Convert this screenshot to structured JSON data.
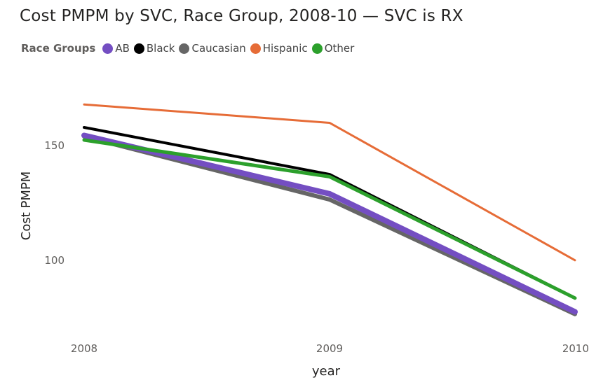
{
  "chart_data": {
    "type": "line",
    "title": "Cost PMPM by SVC, Race Group, 2008-10 — SVC is RX",
    "xlabel": "year",
    "ylabel": "Cost PMPM",
    "legend_title": "Race Groups",
    "legend_position": "top-left",
    "grid": false,
    "x": [
      "2008",
      "2009",
      "2010"
    ],
    "y_ticks": [
      "150",
      "100"
    ],
    "ylim": [
      70,
      180
    ],
    "series": [
      {
        "name": "Caucasian",
        "color": "#666666",
        "values": [
          154,
          126.5,
          76.5
        ]
      },
      {
        "name": "AB",
        "color": "#744EC2",
        "values": [
          154.5,
          129,
          77.5
        ]
      },
      {
        "name": "Black",
        "color": "#000000",
        "values": [
          158,
          137.5,
          83.5
        ]
      },
      {
        "name": "Other",
        "color": "#2CA02C",
        "values": [
          152.5,
          136.5,
          83.5
        ]
      },
      {
        "name": "Hispanic",
        "color": "#E66C37",
        "values": [
          168,
          160,
          100
        ]
      }
    ],
    "legend_order": [
      "AB",
      "Black",
      "Caucasian",
      "Hispanic",
      "Other"
    ]
  }
}
